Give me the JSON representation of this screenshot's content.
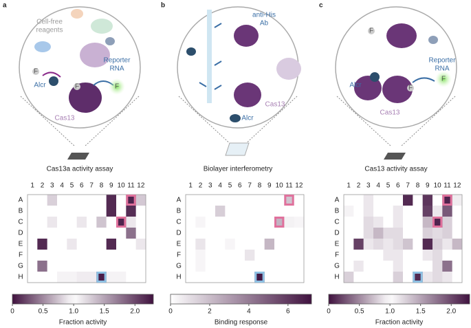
{
  "panels": [
    {
      "letter": "a",
      "labels": [
        [
          "Cell-free",
          "reagents"
        ],
        [
          "Reporter",
          "RNA"
        ],
        [
          "Alcr"
        ],
        [
          "Cas13"
        ],
        [
          "F"
        ],
        [
          "F"
        ],
        [
          "F"
        ]
      ],
      "title": "Cas13a activity assay",
      "heatmap": {
        "scale": "diverging",
        "low_color": "#40123f",
        "mid_color": "#ffffff",
        "columns": [
          1,
          2,
          3,
          4,
          5,
          6,
          7,
          8,
          9,
          10,
          11,
          12
        ],
        "rows": [
          "A",
          "B",
          "C",
          "D",
          "E",
          "F",
          "G",
          "H"
        ],
        "values": [
          [
            1,
            1,
            0.8,
            1,
            1,
            1,
            1,
            1,
            0.1,
            1,
            2.2,
            1.3
          ],
          [
            1,
            1,
            1,
            1,
            1,
            1,
            1,
            1,
            0.1,
            1,
            2.15,
            1
          ],
          [
            1,
            1,
            0.9,
            1,
            1,
            0.9,
            1,
            0.75,
            1,
            2.2,
            0.9,
            1
          ],
          [
            1,
            1,
            1,
            1,
            1,
            1,
            1,
            1,
            1,
            1,
            0.4,
            1
          ],
          [
            1,
            0.1,
            1,
            1,
            0.9,
            1,
            1,
            1,
            0.1,
            1,
            1,
            0.9
          ],
          [
            1,
            1,
            1,
            1,
            1,
            1,
            1,
            1,
            1,
            1,
            1,
            1
          ],
          [
            1,
            0.4,
            1,
            1,
            1,
            1,
            1,
            1,
            1,
            1,
            1,
            1
          ],
          [
            1,
            1,
            1,
            0.95,
            0.95,
            0.92,
            0.92,
            0.05,
            0.95,
            0.95,
            1,
            1
          ]
        ],
        "highlights": [
          {
            "row": "A",
            "col": 11,
            "color": "#e0719c"
          },
          {
            "row": "C",
            "col": 10,
            "color": "#e0719c"
          },
          {
            "row": "H",
            "col": 8,
            "color": "#8ec1e3"
          }
        ],
        "colorbar": {
          "lim": [
            0,
            2.3
          ],
          "ticks": [
            0,
            0.5,
            {
              "value": 1,
              "label": "1.0"
            },
            1.5,
            {
              "value": 2,
              "label": "2.0"
            }
          ],
          "label": "Fraction activity"
        }
      }
    },
    {
      "letter": "b",
      "labels": [
        [
          "anti-His",
          "Ab"
        ],
        [
          "Cas13"
        ],
        [
          "Alcr"
        ]
      ],
      "title": "Biolayer interferometry",
      "heatmap": {
        "scale": "sequential",
        "low_color": "#40123f",
        "mid_color": "#ffffff",
        "columns": [
          1,
          2,
          3,
          4,
          5,
          6,
          7,
          8,
          9,
          10,
          11,
          12
        ],
        "rows": [
          "A",
          "B",
          "C",
          "D",
          "E",
          "F",
          "G",
          "H"
        ],
        "values": [
          [
            0,
            0,
            0,
            0,
            0,
            0,
            0,
            0,
            0,
            0,
            1.8,
            0
          ],
          [
            0,
            0,
            0,
            1.5,
            0,
            0,
            0,
            0,
            0,
            0,
            0,
            0
          ],
          [
            0,
            0.3,
            0,
            0,
            0,
            0,
            0,
            0,
            0,
            2.3,
            0.4,
            0.3
          ],
          [
            0,
            0,
            0,
            0,
            0,
            0,
            0,
            0,
            0,
            0,
            0,
            0
          ],
          [
            0,
            0.8,
            0,
            0,
            0.3,
            0,
            0,
            0,
            2.2,
            0,
            0,
            0
          ],
          [
            0,
            0.3,
            0,
            0,
            0,
            0,
            0.8,
            0,
            0,
            0,
            0,
            0
          ],
          [
            0,
            0.3,
            0,
            0,
            0,
            0,
            0,
            0,
            0,
            0,
            0,
            0
          ],
          [
            0,
            0,
            0,
            0,
            0,
            0,
            0,
            7,
            0,
            0,
            0,
            0
          ]
        ],
        "highlights": [
          {
            "row": "A",
            "col": 11,
            "color": "#e0719c"
          },
          {
            "row": "C",
            "col": 10,
            "color": "#e0719c"
          },
          {
            "row": "H",
            "col": 8,
            "color": "#8ec1e3"
          }
        ],
        "colorbar": {
          "lim": [
            0,
            7.2
          ],
          "ticks": [
            0,
            2,
            4,
            6
          ],
          "label": "Binding response"
        }
      }
    },
    {
      "letter": "c",
      "labels": [
        [
          "Reporter",
          "RNA"
        ],
        [
          "Alcr"
        ],
        [
          "Cas13"
        ],
        [
          "F"
        ],
        [
          "F"
        ],
        [
          "F"
        ]
      ],
      "title": "Cas13 activity assay",
      "heatmap": {
        "scale": "diverging",
        "low_color": "#40123f",
        "mid_color": "#ffffff",
        "columns": [
          1,
          2,
          3,
          4,
          5,
          6,
          7,
          8,
          9,
          10,
          11,
          12
        ],
        "rows": [
          "A",
          "B",
          "C",
          "D",
          "E",
          "F",
          "G",
          "H"
        ],
        "values": [
          [
            1,
            1,
            0.9,
            1,
            1,
            1,
            0.1,
            1,
            0.15,
            1,
            2.2,
            1.1
          ],
          [
            0.95,
            1,
            0.9,
            1,
            1,
            0.9,
            1,
            1,
            0.2,
            0.9,
            0.3,
            1
          ],
          [
            1,
            1,
            0.85,
            0.9,
            1,
            0.9,
            1,
            1,
            0.7,
            2.2,
            0.8,
            1
          ],
          [
            1,
            1,
            0.85,
            0.7,
            0.85,
            0.85,
            1,
            1,
            0.8,
            0.85,
            0.8,
            1
          ],
          [
            1,
            0.2,
            0.9,
            0.85,
            0.9,
            0.85,
            0.75,
            1,
            0.1,
            0.8,
            0.9,
            0.7
          ],
          [
            1,
            1,
            1,
            1,
            0.9,
            0.9,
            1,
            1,
            0.9,
            0.85,
            1,
            1
          ],
          [
            1,
            0.9,
            1,
            1,
            1,
            0.9,
            1,
            1,
            1,
            0.85,
            0.4,
            1
          ],
          [
            0.8,
            1,
            1,
            1,
            1,
            0.8,
            1,
            0.1,
            0.9,
            0.85,
            0.9,
            1
          ]
        ],
        "highlights": [
          {
            "row": "A",
            "col": 11,
            "color": "#e0719c"
          },
          {
            "row": "C",
            "col": 10,
            "color": "#e0719c"
          },
          {
            "row": "H",
            "col": 8,
            "color": "#8ec1e3"
          }
        ],
        "colorbar": {
          "lim": [
            0,
            2.3
          ],
          "ticks": [
            0,
            0.5,
            {
              "value": 1,
              "label": "1.0"
            },
            1.5,
            {
              "value": 2,
              "label": "2.0"
            }
          ],
          "label": "Fraction activity"
        }
      }
    }
  ]
}
